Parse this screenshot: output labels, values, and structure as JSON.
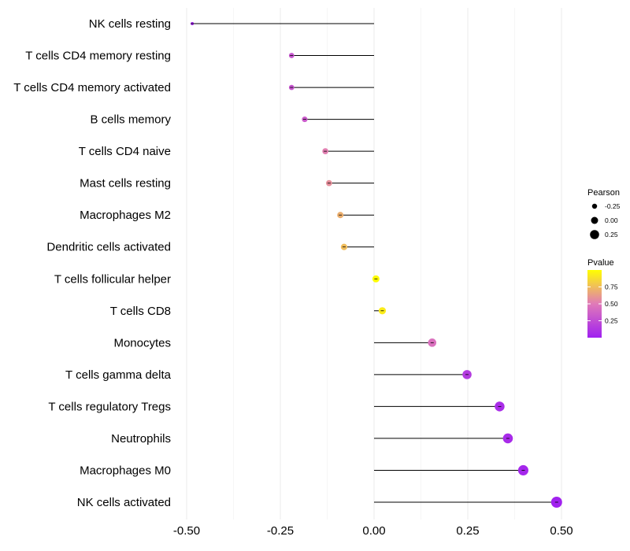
{
  "chart_data": {
    "type": "lollipop",
    "title": "",
    "xlabel": "",
    "ylabel": "",
    "xlim": [
      -0.5,
      0.5
    ],
    "xticks": [
      -0.5,
      -0.25,
      0.0,
      0.25,
      0.5
    ],
    "xtick_labels": [
      "-0.50",
      "-0.25",
      "0.00",
      "0.25",
      "0.50"
    ],
    "baseline": 0.0,
    "categories": [
      "NK cells resting",
      "T cells CD4 memory resting",
      "T cells CD4 memory activated",
      "B cells memory",
      "T cells CD4 naive",
      "Mast cells resting",
      "Macrophages M2",
      "Dendritic cells activated",
      "T cells follicular helper",
      "T cells CD8",
      "Monocytes",
      "T cells gamma delta",
      "T cells regulatory  Tregs",
      "Neutrophils",
      "Macrophages M0",
      "NK cells activated"
    ],
    "pearson": [
      -0.485,
      -0.22,
      -0.22,
      -0.185,
      -0.13,
      -0.12,
      -0.09,
      -0.08,
      0.005,
      0.022,
      0.155,
      0.248,
      0.335,
      0.357,
      0.398,
      0.487
    ],
    "pvalue": [
      0.02,
      0.3,
      0.3,
      0.33,
      0.52,
      0.58,
      0.7,
      0.75,
      0.99,
      0.93,
      0.45,
      0.15,
      0.07,
      0.06,
      0.04,
      0.01
    ],
    "legend_size": {
      "title": "Pearson",
      "breaks": [
        -0.25,
        0.0,
        0.25
      ],
      "labels": [
        "-0.25",
        "0.00",
        "0.25"
      ]
    },
    "legend_color": {
      "title": "Pvalue",
      "range": [
        0.0,
        1.0
      ],
      "breaks": [
        0.25,
        0.5,
        0.75
      ],
      "labels": [
        "0.25",
        "0.50",
        "0.75"
      ],
      "low_color": "#a020f0",
      "mid_color": "#e07ab8",
      "high_color": "#ffff00"
    },
    "grid": true,
    "legend_position": "right"
  },
  "colors": {
    "gridline": "#ebebeb",
    "segment": "#000000",
    "background": "#ffffff"
  }
}
